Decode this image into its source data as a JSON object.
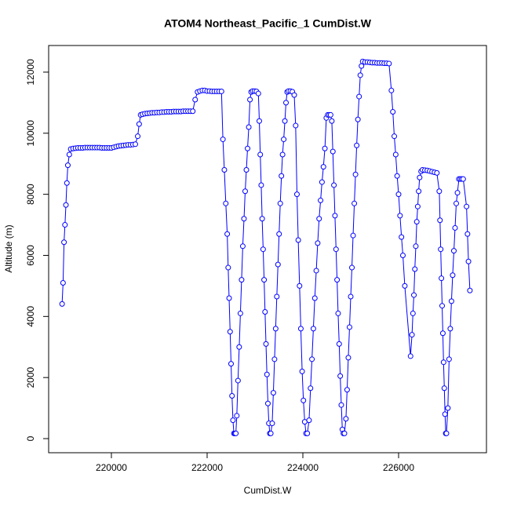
{
  "chart_data": {
    "type": "line_points",
    "title": "ATOM4 Northeast_Pacific_1 CumDist.W",
    "x_label": "CumDist.W",
    "y_label": "Altitude (m)",
    "color": "#0000ff",
    "xlim": [
      218689,
      227836
    ],
    "ylim": [
      -462,
      12872
    ],
    "xticks": [
      220000,
      222000,
      224000,
      226000
    ],
    "yticks": [
      0,
      2000,
      4000,
      6000,
      8000,
      10000,
      12000
    ],
    "x": [
      218970,
      218990,
      219010,
      219030,
      219050,
      219070,
      219090,
      219120,
      219150,
      219200,
      219250,
      219300,
      219350,
      219400,
      219450,
      219500,
      219550,
      219600,
      219650,
      219700,
      219750,
      219800,
      219850,
      219900,
      219950,
      220000,
      220050,
      220100,
      220150,
      220200,
      220250,
      220300,
      220350,
      220400,
      220450,
      220500,
      220550,
      220580,
      220610,
      220650,
      220700,
      220750,
      220800,
      220850,
      220900,
      220950,
      221000,
      221050,
      221100,
      221150,
      221200,
      221250,
      221300,
      221350,
      221400,
      221450,
      221500,
      221550,
      221600,
      221650,
      221700,
      221750,
      221800,
      221850,
      221900,
      221950,
      222000,
      222050,
      222100,
      222150,
      222200,
      222250,
      222300,
      222330,
      222360,
      222390,
      222420,
      222440,
      222460,
      222480,
      222500,
      222520,
      222540,
      222560,
      222580,
      222600,
      222620,
      222645,
      222670,
      222695,
      222720,
      222745,
      222770,
      222795,
      222820,
      222845,
      222870,
      222895,
      222920,
      222950,
      222990,
      223030,
      223070,
      223090,
      223110,
      223130,
      223150,
      223170,
      223190,
      223210,
      223230,
      223250,
      223270,
      223290,
      223310,
      223330,
      223360,
      223384,
      223408,
      223432,
      223456,
      223480,
      223504,
      223528,
      223552,
      223576,
      223600,
      223624,
      223648,
      223672,
      223700,
      223740,
      223780,
      223820,
      223850,
      223877,
      223904,
      223931,
      223958,
      223985,
      224012,
      224039,
      224066,
      224093,
      224130,
      224160,
      224190,
      224220,
      224250,
      224280,
      224310,
      224340,
      224370,
      224400,
      224430,
      224460,
      224490,
      224520,
      224550,
      224580,
      224605,
      224627,
      224649,
      224671,
      224693,
      224715,
      224737,
      224759,
      224781,
      224803,
      224825,
      224847,
      224869,
      224900,
      224925,
      224950,
      224975,
      225000,
      225025,
      225050,
      225075,
      225100,
      225125,
      225150,
      225175,
      225200,
      225225,
      225250,
      225300,
      225350,
      225400,
      225450,
      225500,
      225550,
      225600,
      225650,
      225700,
      225750,
      225800,
      225850,
      225880,
      225910,
      225940,
      225970,
      226000,
      226030,
      226060,
      226090,
      226130,
      226250,
      226280,
      226300,
      226320,
      226340,
      226360,
      226380,
      226400,
      226420,
      226440,
      226470,
      226500,
      226550,
      226600,
      226650,
      226700,
      226750,
      226800,
      226850,
      226865,
      226880,
      226895,
      226910,
      226925,
      226940,
      226955,
      226970,
      226985,
      227000,
      227030,
      227055,
      227080,
      227105,
      227130,
      227155,
      227180,
      227205,
      227230,
      227260,
      227290,
      227320,
      227350,
      227420,
      227440,
      227460,
      227490
    ],
    "values": [
      4410,
      5100,
      6430,
      7000,
      7650,
      8370,
      8950,
      9300,
      9480,
      9500,
      9510,
      9520,
      9520,
      9520,
      9530,
      9530,
      9530,
      9530,
      9530,
      9530,
      9530,
      9520,
      9520,
      9520,
      9520,
      9520,
      9540,
      9560,
      9580,
      9590,
      9600,
      9610,
      9620,
      9620,
      9630,
      9640,
      9900,
      10300,
      10600,
      10620,
      10640,
      10650,
      10660,
      10670,
      10670,
      10680,
      10680,
      10690,
      10690,
      10700,
      10700,
      10700,
      10710,
      10710,
      10710,
      10710,
      10720,
      10720,
      10720,
      10720,
      10720,
      11100,
      11350,
      11380,
      11400,
      11400,
      11380,
      11380,
      11370,
      11370,
      11370,
      11370,
      11370,
      9800,
      8800,
      7700,
      6700,
      5600,
      4600,
      3500,
      2450,
      1400,
      600,
      170,
      170,
      170,
      750,
      1900,
      3000,
      4100,
      5200,
      6300,
      7200,
      8100,
      8800,
      9500,
      10200,
      11100,
      11350,
      11380,
      11380,
      11370,
      11300,
      10400,
      9300,
      8300,
      7200,
      6200,
      5200,
      4150,
      3100,
      2100,
      1150,
      500,
      170,
      170,
      500,
      1500,
      2600,
      3600,
      4650,
      5700,
      6700,
      7700,
      8600,
      9300,
      9800,
      10400,
      11000,
      11350,
      11380,
      11380,
      11360,
      11250,
      10250,
      8000,
      6500,
      5000,
      3600,
      2200,
      1250,
      550,
      170,
      170,
      600,
      1650,
      2600,
      3600,
      4600,
      5500,
      6400,
      7200,
      7800,
      8400,
      8900,
      9500,
      10500,
      10600,
      10600,
      10600,
      10400,
      9400,
      8300,
      7300,
      6200,
      5200,
      4100,
      3100,
      2050,
      1100,
      300,
      170,
      170,
      650,
      1600,
      2650,
      3650,
      4650,
      5600,
      6650,
      7700,
      8650,
      9600,
      10450,
      11200,
      11900,
      12200,
      12350,
      12330,
      12330,
      12320,
      12310,
      12310,
      12300,
      12300,
      12300,
      12290,
      12290,
      12280,
      11400,
      10700,
      9900,
      9300,
      8600,
      8000,
      7300,
      6600,
      6000,
      5000,
      2700,
      3400,
      4100,
      4700,
      5550,
      6300,
      7100,
      7600,
      8100,
      8550,
      8750,
      8800,
      8790,
      8780,
      8760,
      8740,
      8720,
      8700,
      8100,
      7150,
      6200,
      5250,
      4350,
      3450,
      2500,
      1650,
      800,
      170,
      170,
      1000,
      2600,
      3600,
      4500,
      5350,
      6150,
      6900,
      7700,
      8050,
      8500,
      8500,
      8500,
      8500,
      7600,
      6700,
      5800,
      4850
    ]
  }
}
